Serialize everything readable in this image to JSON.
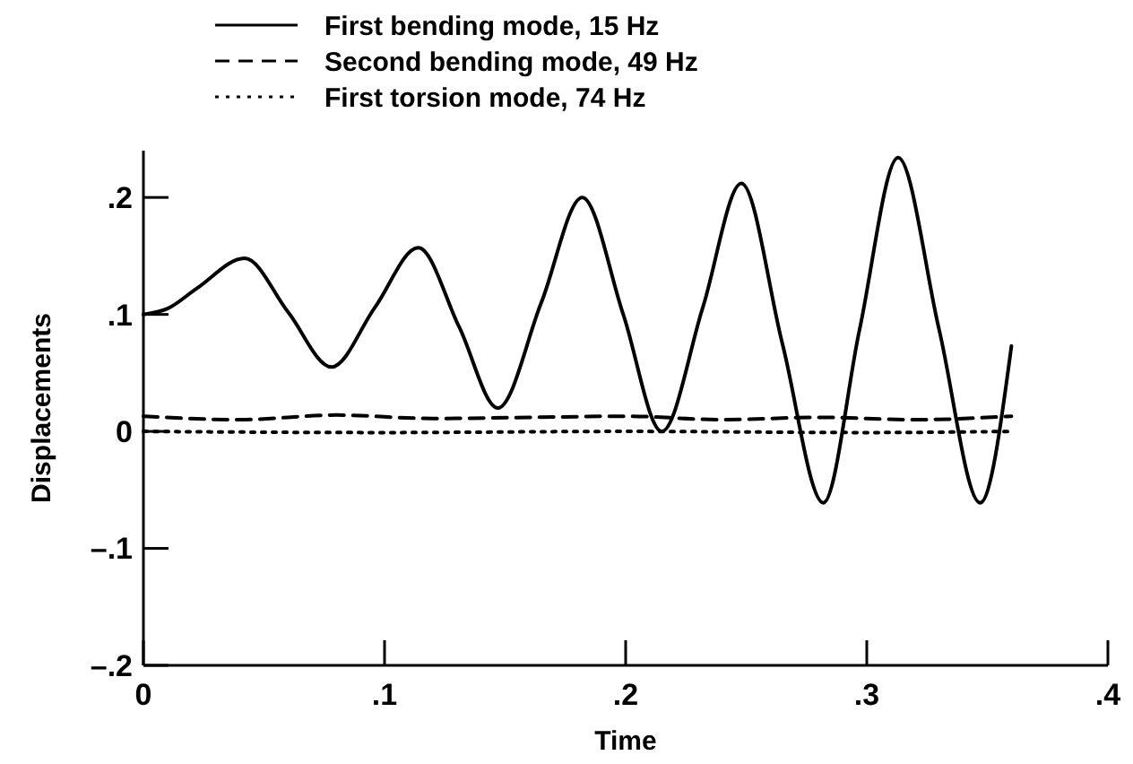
{
  "chart_data": {
    "type": "line",
    "xlabel": "Time",
    "ylabel": "Displacements",
    "xlim": [
      0,
      0.4
    ],
    "xticks": [
      {
        "value": 0,
        "label": "0"
      },
      {
        "value": 0.1,
        "label": ".1"
      },
      {
        "value": 0.2,
        "label": ".2"
      },
      {
        "value": 0.3,
        "label": ".3"
      },
      {
        "value": 0.4,
        "label": ".4"
      }
    ],
    "ylim": [
      -0.2,
      0.24
    ],
    "yticks": [
      {
        "value": -0.2,
        "label": "–.2"
      },
      {
        "value": -0.1,
        "label": "–.1"
      },
      {
        "value": 0,
        "label": "0"
      },
      {
        "value": 0.1,
        "label": ".1"
      },
      {
        "value": 0.2,
        "label": ".2"
      }
    ],
    "grid": false,
    "legend": "top left",
    "marker": "none",
    "series": [
      {
        "name": "First bending mode, 15 Hz",
        "color": "#000000",
        "line_style": "solid",
        "x": [
          0,
          0.01,
          0.022,
          0.042,
          0.06,
          0.078,
          0.096,
          0.114,
          0.131,
          0.147,
          0.165,
          0.182,
          0.199,
          0.215,
          0.232,
          0.248,
          0.265,
          0.282,
          0.297,
          0.313,
          0.33,
          0.347,
          0.36
        ],
        "values": [
          0.1,
          0.105,
          0.122,
          0.148,
          0.102,
          0.055,
          0.106,
          0.157,
          0.089,
          0.02,
          0.11,
          0.2,
          0.1,
          0.0,
          0.106,
          0.212,
          0.075,
          -0.061,
          0.087,
          0.234,
          0.087,
          -0.061,
          0.073
        ]
      },
      {
        "name": "Second bending mode, 49 Hz",
        "color": "#000000",
        "line_style": "dashed",
        "x": [
          0,
          0.04,
          0.08,
          0.12,
          0.16,
          0.2,
          0.24,
          0.28,
          0.32,
          0.36
        ],
        "values": [
          0.013,
          0.01,
          0.014,
          0.011,
          0.012,
          0.013,
          0.01,
          0.012,
          0.01,
          0.013
        ]
      },
      {
        "name": "First torsion mode, 74 Hz",
        "color": "#000000",
        "line_style": "dotted",
        "x": [
          0,
          0.1,
          0.2,
          0.3,
          0.36
        ],
        "values": [
          0,
          -0.001,
          0,
          -0.001,
          0
        ]
      }
    ]
  }
}
